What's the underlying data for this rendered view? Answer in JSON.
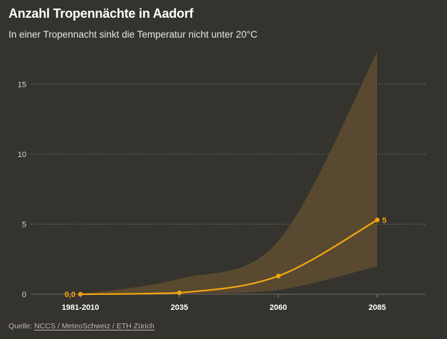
{
  "header": {
    "title": "Anzahl Tropennächte in Aadorf",
    "subtitle": "In einer Tropennacht sinkt die Temperatur nicht unter 20°C"
  },
  "source": {
    "label": "Quelle:",
    "link": "NCCS / MeteoSchweiz / ETH Zürich"
  },
  "colors": {
    "background": "#35332e",
    "line": "#f5a60f",
    "band": "#5b4b30",
    "grid": "#8a867e",
    "text": "#ffffff"
  },
  "chart_data": {
    "type": "line",
    "title": "Anzahl Tropennächte in Aadorf",
    "subtitle": "In einer Tropennacht sinkt die Temperatur nicht unter 20°C",
    "xlabel": "",
    "ylabel": "",
    "categories": [
      "1981-2010",
      "2035",
      "2060",
      "2085"
    ],
    "x": [
      0,
      1,
      2,
      3
    ],
    "ylim": [
      0,
      17.5
    ],
    "yticks": [
      0,
      5,
      10,
      15
    ],
    "grid": true,
    "legend": "none",
    "series": [
      {
        "name": "",
        "values": [
          0.0,
          0.1,
          1.3,
          5.3
        ],
        "labels": [
          "0,0",
          "",
          "",
          "5"
        ]
      }
    ],
    "band": {
      "lower": [
        0.0,
        0.05,
        0.3,
        2.0
      ],
      "upper": [
        0.0,
        1.1,
        3.8,
        17.3
      ]
    }
  }
}
